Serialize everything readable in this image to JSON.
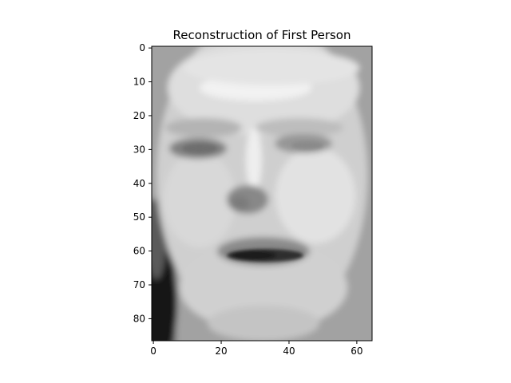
{
  "chart_data": {
    "type": "heatmap",
    "title": "Reconstruction of First Person",
    "xlabel": "",
    "ylabel": "",
    "colormap": "gray",
    "image_shape": [
      87,
      65
    ],
    "xlim": [
      -0.5,
      64.5
    ],
    "ylim": [
      86.5,
      -0.5
    ],
    "x_ticks": [
      0,
      20,
      40,
      60
    ],
    "y_ticks": [
      0,
      10,
      20,
      30,
      40,
      50,
      60,
      70,
      80
    ],
    "x_tick_labels": [
      "0",
      "20",
      "40",
      "60"
    ],
    "y_tick_labels": [
      "0",
      "10",
      "20",
      "30",
      "40",
      "50",
      "60",
      "70",
      "80"
    ],
    "grid": false,
    "legend": false
  }
}
